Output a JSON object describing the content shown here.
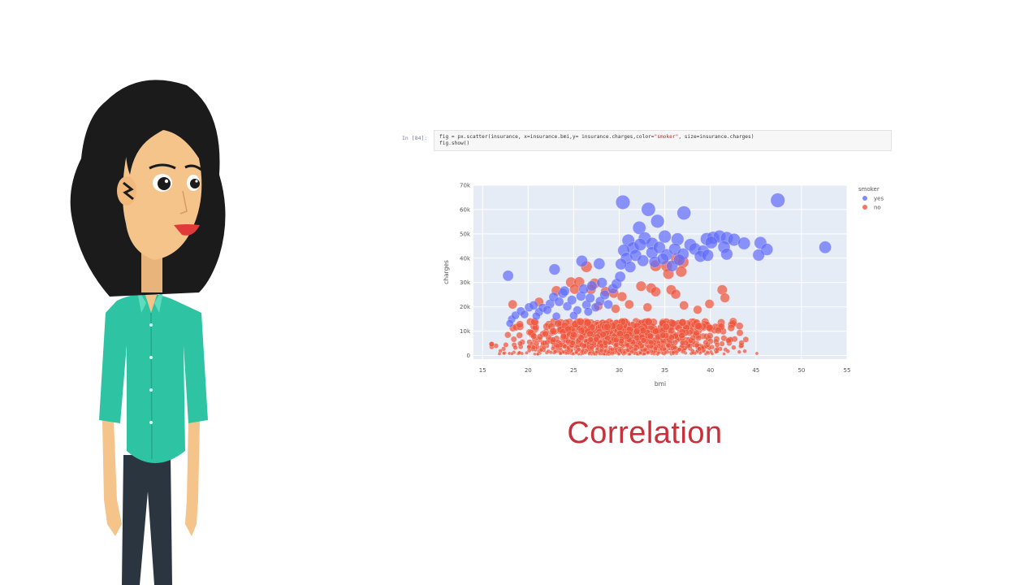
{
  "notebook": {
    "prompt": "In [84]:",
    "code_line1_pre": "fig = px.scatter(insurance, x=insurance.bmi,y= insurance.charges,color=",
    "code_line1_str": "\"smoker\"",
    "code_line1_post": ", size=insurance.charges)",
    "code_line2": "fig.show()"
  },
  "slide_title": "Correlation",
  "colors": {
    "plot_bg": "#e5ecf6",
    "grid": "#ffffff",
    "yes": "#636efa",
    "no": "#ef553b",
    "title": "#c9303a",
    "shirt": "#2ec4a3",
    "pants": "#2b3540",
    "hair": "#1b1b1b",
    "skin": "#f5c48a"
  },
  "chart_data": {
    "type": "scatter",
    "title": "",
    "xlabel": "bmi",
    "ylabel": "charges",
    "xlim": [
      14,
      55
    ],
    "ylim": [
      -1500,
      70000
    ],
    "x_ticks": [
      15,
      20,
      25,
      30,
      35,
      40,
      45,
      50,
      55
    ],
    "y_ticks": [
      0,
      10000,
      20000,
      30000,
      40000,
      50000,
      60000,
      70000
    ],
    "y_tick_labels": [
      "0",
      "10k",
      "20k",
      "30k",
      "40k",
      "50k",
      "60k",
      "70k"
    ],
    "grid": true,
    "legend": {
      "title": "smoker",
      "position": "top-right",
      "entries": [
        "yes",
        "no"
      ]
    },
    "size_by": "charges",
    "series": [
      {
        "name": "yes",
        "color": "#636efa",
        "points": [
          [
            17.8,
            32800
          ],
          [
            22.9,
            35400
          ],
          [
            25.9,
            38800
          ],
          [
            27.8,
            37700
          ],
          [
            30.4,
            63000
          ],
          [
            33.2,
            60100
          ],
          [
            34.2,
            55200
          ],
          [
            37.1,
            58600
          ],
          [
            47.4,
            63800
          ],
          [
            52.6,
            44500
          ],
          [
            32.2,
            52500
          ],
          [
            31.0,
            47300
          ],
          [
            32.8,
            48200
          ],
          [
            35.0,
            48900
          ],
          [
            36.4,
            47800
          ],
          [
            33.6,
            46000
          ],
          [
            31.5,
            44200
          ],
          [
            30.5,
            43200
          ],
          [
            30.8,
            40000
          ],
          [
            31.8,
            41200
          ],
          [
            32.6,
            39000
          ],
          [
            33.6,
            42300
          ],
          [
            34.4,
            44400
          ],
          [
            35.2,
            41400
          ],
          [
            36.1,
            43700
          ],
          [
            37.0,
            41700
          ],
          [
            37.8,
            45500
          ],
          [
            38.3,
            43800
          ],
          [
            39.6,
            47900
          ],
          [
            40.3,
            48400
          ],
          [
            41.0,
            48900
          ],
          [
            41.8,
            48300
          ],
          [
            42.6,
            47600
          ],
          [
            43.7,
            46100
          ],
          [
            45.5,
            46300
          ],
          [
            46.2,
            43600
          ],
          [
            45.3,
            41300
          ],
          [
            41.5,
            44600
          ],
          [
            39.2,
            42900
          ],
          [
            35.8,
            36800
          ],
          [
            31.2,
            36400
          ],
          [
            30.2,
            37600
          ],
          [
            33.9,
            38500
          ],
          [
            34.8,
            39700
          ],
          [
            36.6,
            39300
          ],
          [
            38.9,
            40800
          ],
          [
            41.8,
            41700
          ],
          [
            40.1,
            46500
          ],
          [
            39.7,
            41200
          ],
          [
            32.3,
            45600
          ],
          [
            18.2,
            14900
          ],
          [
            18.6,
            16500
          ],
          [
            19.2,
            18200
          ],
          [
            19.6,
            16900
          ],
          [
            20.1,
            19800
          ],
          [
            20.6,
            20600
          ],
          [
            21.2,
            17900
          ],
          [
            21.6,
            19600
          ],
          [
            22.4,
            21200
          ],
          [
            22.8,
            24000
          ],
          [
            23.4,
            22100
          ],
          [
            23.8,
            25600
          ],
          [
            24.3,
            20200
          ],
          [
            24.8,
            22800
          ],
          [
            25.4,
            18600
          ],
          [
            25.8,
            24400
          ],
          [
            26.4,
            20800
          ],
          [
            26.8,
            23600
          ],
          [
            27.4,
            19800
          ],
          [
            27.9,
            22300
          ],
          [
            28.4,
            24900
          ],
          [
            28.8,
            21000
          ],
          [
            29.3,
            27400
          ],
          [
            29.7,
            29400
          ],
          [
            30.1,
            32400
          ],
          [
            26.1,
            27300
          ],
          [
            24.0,
            26500
          ],
          [
            27.0,
            28600
          ],
          [
            22.1,
            18700
          ],
          [
            25.0,
            16400
          ],
          [
            23.1,
            16100
          ],
          [
            20.9,
            16200
          ],
          [
            18.0,
            13200
          ],
          [
            26.6,
            18000
          ],
          [
            28.1,
            29900
          ]
        ]
      },
      {
        "name": "no",
        "color": "#ef553b",
        "points": [
          [
            26.4,
            36500
          ],
          [
            34.0,
            36900
          ],
          [
            35.2,
            36800
          ],
          [
            36.3,
            39700
          ],
          [
            37.0,
            38400
          ],
          [
            35.4,
            33600
          ],
          [
            36.8,
            34500
          ],
          [
            41.3,
            27000
          ],
          [
            41.6,
            23700
          ],
          [
            27.3,
            29600
          ],
          [
            28.5,
            26300
          ],
          [
            24.7,
            30100
          ],
          [
            25.6,
            30200
          ],
          [
            26.9,
            27200
          ],
          [
            25.1,
            27300
          ],
          [
            29.4,
            25600
          ],
          [
            30.3,
            24200
          ],
          [
            32.4,
            28500
          ],
          [
            33.5,
            27700
          ],
          [
            34.0,
            26200
          ],
          [
            35.7,
            27000
          ],
          [
            36.2,
            25200
          ],
          [
            37.1,
            20600
          ],
          [
            38.6,
            18800
          ],
          [
            39.9,
            21200
          ],
          [
            31.1,
            21000
          ],
          [
            33.1,
            19800
          ],
          [
            23.1,
            26600
          ],
          [
            21.2,
            22000
          ],
          [
            18.3,
            21000
          ],
          [
            27.7,
            20300
          ],
          [
            29.6,
            19200
          ]
        ],
        "bulk": {
          "description": "dense band of ~1000 non-smoker points",
          "x_range": [
            16.0,
            53.0
          ],
          "y_base_range": [
            500,
            14000
          ],
          "x_mode": 30.5
        }
      }
    ]
  },
  "character": {
    "description": "cartoon woman presenter"
  }
}
